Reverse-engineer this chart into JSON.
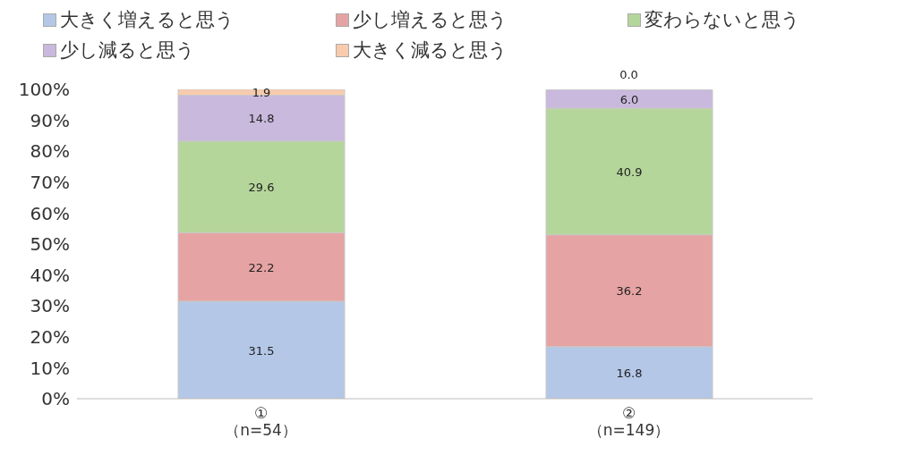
{
  "chart_data": {
    "type": "bar",
    "stacked": true,
    "categories": [
      "①\n（n=54）",
      "②\n（n=149）"
    ],
    "series": [
      {
        "name": "大きく増えると思う",
        "color": "#b4c7e7",
        "values": [
          31.5,
          16.8
        ],
        "value_labels": [
          "31.5",
          "16.8"
        ]
      },
      {
        "name": "少し増えると思う",
        "color": "#e6a3a3",
        "values": [
          22.2,
          36.2
        ],
        "value_labels": [
          "22.2",
          "36.2"
        ]
      },
      {
        "name": "変わらないと思う",
        "color": "#b5d69a",
        "values": [
          29.6,
          40.9
        ],
        "value_labels": [
          "29.6",
          "40.9"
        ]
      },
      {
        "name": "少し減ると思う",
        "color": "#c9b9dd",
        "values": [
          14.8,
          6.0
        ],
        "value_labels": [
          "14.8",
          "6.0"
        ]
      },
      {
        "name": "大きく減ると思う",
        "color": "#f8cbad",
        "values": [
          1.9,
          0
        ],
        "value_labels": [
          "1.9",
          "0.0"
        ]
      }
    ],
    "ylim": [
      0,
      100
    ],
    "yticks": [
      {
        "value": 0,
        "label": "0%"
      },
      {
        "value": 10,
        "label": "10%"
      },
      {
        "value": 20,
        "label": "20%"
      },
      {
        "value": 30,
        "label": "30%"
      },
      {
        "value": 40,
        "label": "40%"
      },
      {
        "value": 50,
        "label": "50%"
      },
      {
        "value": 60,
        "label": "60%"
      },
      {
        "value": 70,
        "label": "70%"
      },
      {
        "value": 80,
        "label": "80%"
      },
      {
        "value": 90,
        "label": "90%"
      },
      {
        "value": 100,
        "label": "100%"
      }
    ],
    "grid": false,
    "legend": "top"
  }
}
